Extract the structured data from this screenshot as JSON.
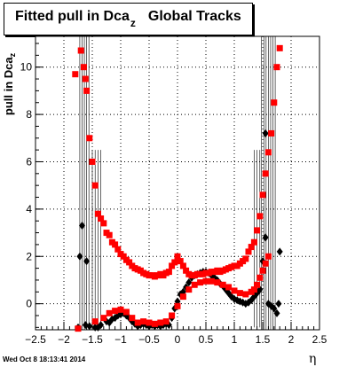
{
  "title": {
    "main": "Fitted pull in Dca",
    "sub": "z",
    "suffix": "Global Tracks"
  },
  "ylabel": {
    "main": "pull in Dca",
    "sub": "z"
  },
  "xlabel": "η",
  "timestamp": "Wed Oct  8 18:13:41 2014",
  "colors": {
    "mean": "#000000",
    "sigma": "#ff0000"
  },
  "chart_data": {
    "type": "scatter",
    "xlim": [
      -2.5,
      2.5
    ],
    "ylim": [
      -1.1,
      11.3
    ],
    "grid": true,
    "x_ticks": [
      -2.5,
      -2,
      -1.5,
      -1,
      -0.5,
      0,
      0.5,
      1,
      1.5,
      2,
      2.5
    ],
    "y_ticks": [
      0,
      2,
      4,
      6,
      8,
      10
    ],
    "series": [
      {
        "marker": "diamond",
        "points": [
          [
            -1.75,
            -1.0
          ],
          [
            -1.72,
            2.0
          ],
          [
            -1.68,
            3.3
          ],
          [
            -1.62,
            -0.9
          ],
          [
            -1.55,
            -0.95
          ],
          [
            -1.45,
            -1.0
          ],
          [
            -1.4,
            -1.0
          ],
          [
            -1.35,
            -0.9
          ],
          [
            -1.25,
            -0.75
          ],
          [
            -1.2,
            -0.8
          ],
          [
            -1.15,
            -0.65
          ],
          [
            -1.1,
            -0.6
          ],
          [
            -1.05,
            -0.5
          ],
          [
            -1.0,
            -0.45
          ],
          [
            -0.95,
            -0.4
          ],
          [
            -0.9,
            -0.5
          ],
          [
            -0.85,
            -0.6
          ],
          [
            -0.8,
            -0.75
          ],
          [
            -0.75,
            -0.85
          ],
          [
            -0.7,
            -0.95
          ],
          [
            -0.65,
            -0.9
          ],
          [
            -0.6,
            -0.85
          ],
          [
            -0.55,
            -0.9
          ],
          [
            -0.5,
            -0.95
          ],
          [
            -0.45,
            -0.9
          ],
          [
            -0.4,
            -0.95
          ],
          [
            -0.35,
            -0.9
          ],
          [
            -0.3,
            -0.95
          ],
          [
            -0.25,
            -0.9
          ],
          [
            -0.2,
            -0.85
          ],
          [
            -0.15,
            -0.9
          ],
          [
            -0.1,
            -0.6
          ],
          [
            -0.05,
            -0.2
          ],
          [
            0.0,
            0.1
          ],
          [
            0.05,
            0.4
          ],
          [
            0.1,
            0.5
          ],
          [
            0.15,
            0.7
          ],
          [
            0.2,
            0.9
          ],
          [
            0.25,
            1.1
          ],
          [
            0.3,
            1.2
          ],
          [
            0.35,
            1.25
          ],
          [
            0.4,
            1.3
          ],
          [
            0.45,
            1.35
          ],
          [
            0.5,
            1.35
          ],
          [
            0.55,
            1.3
          ],
          [
            0.6,
            1.2
          ],
          [
            0.65,
            1.1
          ],
          [
            0.7,
            1.0
          ],
          [
            0.75,
            0.85
          ],
          [
            0.8,
            0.75
          ],
          [
            0.85,
            0.6
          ],
          [
            0.9,
            0.45
          ],
          [
            0.95,
            0.3
          ],
          [
            1.0,
            0.2
          ],
          [
            1.05,
            0.15
          ],
          [
            1.1,
            0.1
          ],
          [
            1.15,
            0.05
          ],
          [
            1.2,
            0.0
          ],
          [
            1.25,
            0.05
          ],
          [
            1.3,
            0.15
          ],
          [
            1.35,
            0.3
          ],
          [
            1.4,
            0.45
          ],
          [
            1.45,
            0.6
          ],
          [
            1.5,
            1.8
          ],
          [
            1.55,
            2.8
          ],
          [
            1.6,
            0.0
          ],
          [
            1.65,
            -0.1
          ],
          [
            1.7,
            -0.2
          ],
          [
            1.75,
            -0.4
          ],
          [
            1.78,
            0.0
          ],
          [
            1.8,
            2.2
          ],
          [
            -1.6,
            1.8
          ],
          [
            1.55,
            7.2
          ]
        ]
      },
      {
        "marker": "square",
        "points": [
          [
            -1.8,
            9.7
          ],
          [
            -1.7,
            10.7
          ],
          [
            -1.65,
            10.0
          ],
          [
            -1.62,
            9.5
          ],
          [
            -1.6,
            9.0
          ],
          [
            -1.55,
            7.0
          ],
          [
            -1.5,
            6.0
          ],
          [
            -1.45,
            5.0
          ],
          [
            -1.4,
            3.8
          ],
          [
            -1.35,
            3.6
          ],
          [
            -1.3,
            3.4
          ],
          [
            -1.25,
            3.0
          ],
          [
            -1.2,
            2.9
          ],
          [
            -1.15,
            2.6
          ],
          [
            -1.1,
            2.5
          ],
          [
            -1.05,
            2.3
          ],
          [
            -1.0,
            2.1
          ],
          [
            -0.95,
            2.0
          ],
          [
            -0.9,
            1.85
          ],
          [
            -0.85,
            1.75
          ],
          [
            -0.8,
            1.6
          ],
          [
            -0.75,
            1.5
          ],
          [
            -0.7,
            1.45
          ],
          [
            -0.65,
            1.4
          ],
          [
            -0.6,
            1.3
          ],
          [
            -0.55,
            1.25
          ],
          [
            -0.5,
            1.2
          ],
          [
            -0.45,
            1.2
          ],
          [
            -0.4,
            1.15
          ],
          [
            -0.35,
            1.2
          ],
          [
            -0.3,
            1.25
          ],
          [
            -0.25,
            1.2
          ],
          [
            -0.2,
            1.3
          ],
          [
            -0.15,
            1.35
          ],
          [
            -0.1,
            1.6
          ],
          [
            -0.05,
            1.75
          ],
          [
            0.0,
            2.0
          ],
          [
            0.05,
            1.8
          ],
          [
            0.1,
            1.6
          ],
          [
            0.15,
            1.4
          ],
          [
            0.2,
            1.25
          ],
          [
            0.25,
            1.2
          ],
          [
            0.3,
            1.2
          ],
          [
            0.35,
            1.25
          ],
          [
            0.4,
            1.25
          ],
          [
            0.45,
            1.25
          ],
          [
            0.5,
            1.3
          ],
          [
            0.55,
            1.3
          ],
          [
            0.6,
            1.35
          ],
          [
            0.65,
            1.35
          ],
          [
            0.7,
            1.4
          ],
          [
            0.75,
            1.35
          ],
          [
            0.8,
            1.4
          ],
          [
            0.85,
            1.45
          ],
          [
            0.9,
            1.5
          ],
          [
            0.95,
            1.55
          ],
          [
            1.0,
            1.6
          ],
          [
            1.05,
            1.6
          ],
          [
            1.1,
            1.7
          ],
          [
            1.15,
            1.8
          ],
          [
            1.2,
            1.9
          ],
          [
            1.25,
            2.2
          ],
          [
            1.3,
            2.4
          ],
          [
            1.35,
            2.6
          ],
          [
            1.4,
            3.1
          ],
          [
            1.45,
            3.7
          ],
          [
            1.5,
            4.6
          ],
          [
            1.55,
            5.5
          ],
          [
            1.6,
            6.4
          ],
          [
            1.65,
            7.2
          ],
          [
            1.7,
            8.5
          ],
          [
            1.75,
            10.0
          ],
          [
            1.8,
            10.8
          ],
          [
            -1.75,
            -1.05
          ],
          [
            -1.45,
            -0.75
          ],
          [
            -1.3,
            -0.6
          ],
          [
            -1.2,
            -0.4
          ],
          [
            -1.1,
            -0.3
          ],
          [
            -1.0,
            -0.25
          ],
          [
            -0.9,
            -0.35
          ],
          [
            -0.8,
            -0.6
          ],
          [
            -0.7,
            -0.8
          ],
          [
            -0.6,
            -0.75
          ],
          [
            -0.5,
            -0.8
          ],
          [
            -0.4,
            -0.85
          ],
          [
            -0.3,
            -0.8
          ],
          [
            -0.2,
            -0.75
          ],
          [
            -0.1,
            -0.5
          ],
          [
            0.0,
            -0.1
          ],
          [
            0.1,
            0.3
          ],
          [
            0.2,
            0.6
          ],
          [
            0.3,
            0.8
          ],
          [
            0.4,
            0.9
          ],
          [
            0.5,
            0.95
          ],
          [
            0.6,
            0.95
          ],
          [
            0.7,
            0.9
          ],
          [
            0.8,
            0.8
          ],
          [
            0.9,
            0.7
          ],
          [
            1.0,
            0.55
          ],
          [
            1.1,
            0.45
          ],
          [
            1.2,
            0.4
          ],
          [
            1.3,
            0.5
          ],
          [
            1.35,
            0.6
          ],
          [
            1.4,
            0.8
          ],
          [
            1.45,
            1.1
          ],
          [
            1.5,
            1.4
          ],
          [
            1.55,
            1.7
          ],
          [
            1.6,
            2.0
          ]
        ]
      }
    ]
  }
}
